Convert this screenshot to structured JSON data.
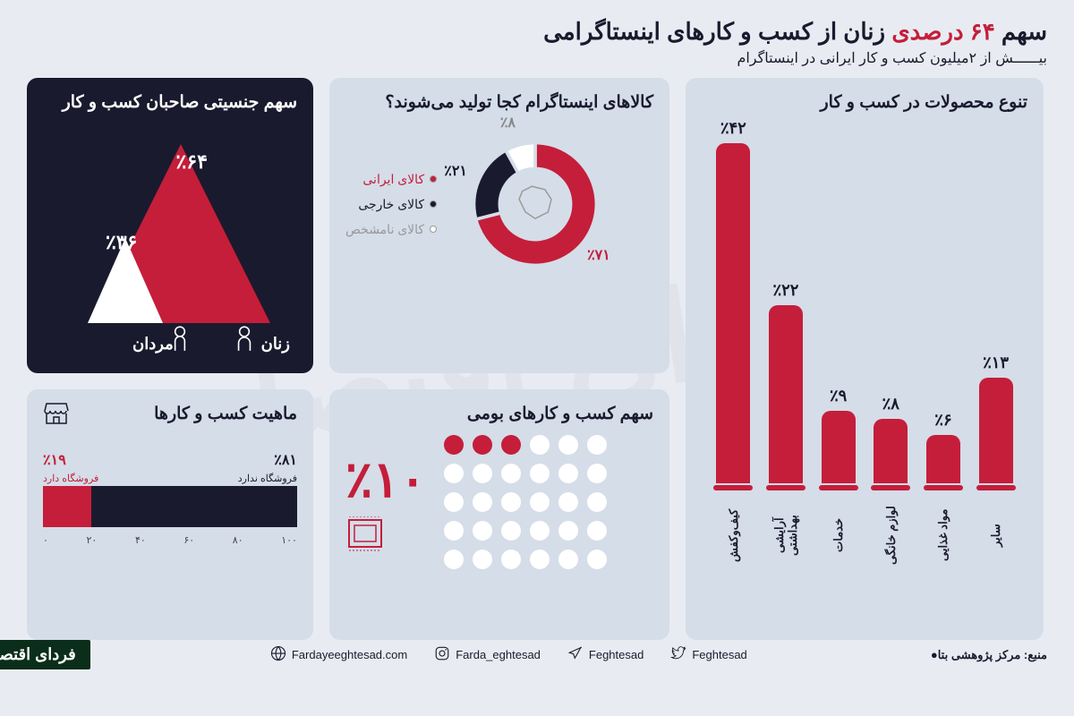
{
  "header": {
    "title_pre": "سهم ",
    "title_red": "۶۴ درصدی",
    "title_post": " زنان از کسب و کارهای اینستاگرامی",
    "subtitle": "بیــــــش از ۲میلیون کسب و کار ایرانی در اینستاگرام"
  },
  "gender": {
    "title": "سهم جنسیتی صاحبان کسب و کار",
    "women_label": "زنان",
    "women_pct": "٪۶۴",
    "men_label": "مردان",
    "men_pct": "٪۳۶",
    "women_color": "#c41e3a",
    "men_color": "#ffffff"
  },
  "donut": {
    "title": "کالاهای اینستاگرام کجا تولید می‌شوند؟",
    "slices": [
      {
        "label": "کالای ایرانی",
        "pct": "٪۷۱",
        "value": 71,
        "color": "#c41e3a"
      },
      {
        "label": "کالای خارجی",
        "pct": "٪۲۱",
        "value": 21,
        "color": "#1a1a2e"
      },
      {
        "label": "کالای نامشخص",
        "pct": "٪۸",
        "value": 8,
        "color": "#ffffff"
      }
    ]
  },
  "bars": {
    "title": "تنوع محصولات در کسب و کار",
    "max": 42,
    "items": [
      {
        "label": "کیف‌وکفش",
        "pct": "٪۴۲",
        "value": 42,
        "color": "#c41e3a"
      },
      {
        "label": "آرایشی بهداشتی",
        "pct": "٪۲۲",
        "value": 22,
        "color": "#c41e3a"
      },
      {
        "label": "خدمات",
        "pct": "٪۹",
        "value": 9,
        "color": "#c41e3a"
      },
      {
        "label": "لوازم خانگی",
        "pct": "٪۸",
        "value": 8,
        "color": "#c41e3a"
      },
      {
        "label": "مواد غذایی",
        "pct": "٪۶",
        "value": 6,
        "color": "#c41e3a"
      },
      {
        "label": "سایر",
        "pct": "٪۱۳",
        "value": 13,
        "color": "#c41e3a"
      }
    ]
  },
  "nature": {
    "title": "ماهیت کسب و کارها",
    "has_store_label": "فروشگاه دارد",
    "has_store_pct": "٪۱۹",
    "has_store_value": 19,
    "no_store_label": "فروشگاه ندارد",
    "no_store_pct": "٪۸۱",
    "no_store_value": 81,
    "store_color": "#c41e3a",
    "no_store_color": "#1a1a2e",
    "axis": [
      "۰",
      "۲۰",
      "۴۰",
      "۶۰",
      "۸۰",
      "۱۰۰"
    ]
  },
  "local": {
    "title": "سهم کسب و کارهای بومی",
    "pct": "٪۱۰",
    "filled": 3,
    "total": 30,
    "filled_color": "#c41e3a",
    "empty_color": "#ffffff"
  },
  "footer": {
    "source_label": "منبع:",
    "source_value": "مرکز پژوهشی بتا",
    "logo": "فردای اقتصاد",
    "socials": [
      {
        "icon": "globe",
        "handle": "Fardayeeghtesad.com"
      },
      {
        "icon": "instagram",
        "handle": "Farda_eghtesad"
      },
      {
        "icon": "telegram",
        "handle": "Feghtesad"
      },
      {
        "icon": "twitter",
        "handle": "Feghtesad"
      }
    ]
  },
  "watermark": "فردای اقتصاد"
}
